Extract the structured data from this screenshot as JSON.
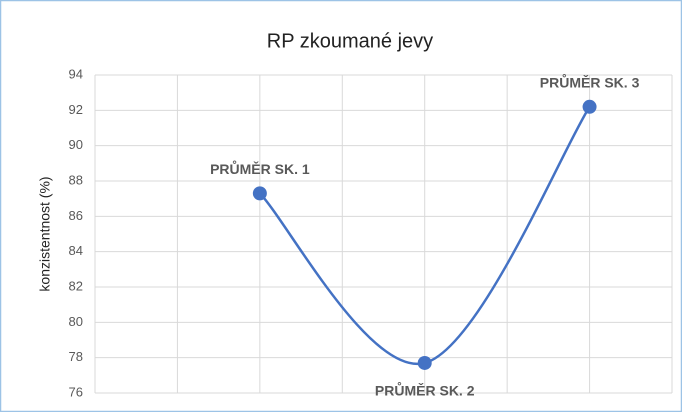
{
  "chart_data": {
    "type": "line",
    "title": "RP zkoumané jevy",
    "y_label": "konzistentnost (%)",
    "categories": [
      "PRŮMĚR SK. 1",
      "PRŮMĚR SK. 2",
      "PRŮMĚR SK. 3"
    ],
    "values": [
      87.3,
      77.7,
      92.2
    ],
    "color": "#4472c4",
    "smooth": true,
    "ylim": [
      76,
      94
    ],
    "yticks": [
      76,
      78,
      80,
      82,
      84,
      86,
      88,
      90,
      92,
      94
    ],
    "grid": true
  }
}
